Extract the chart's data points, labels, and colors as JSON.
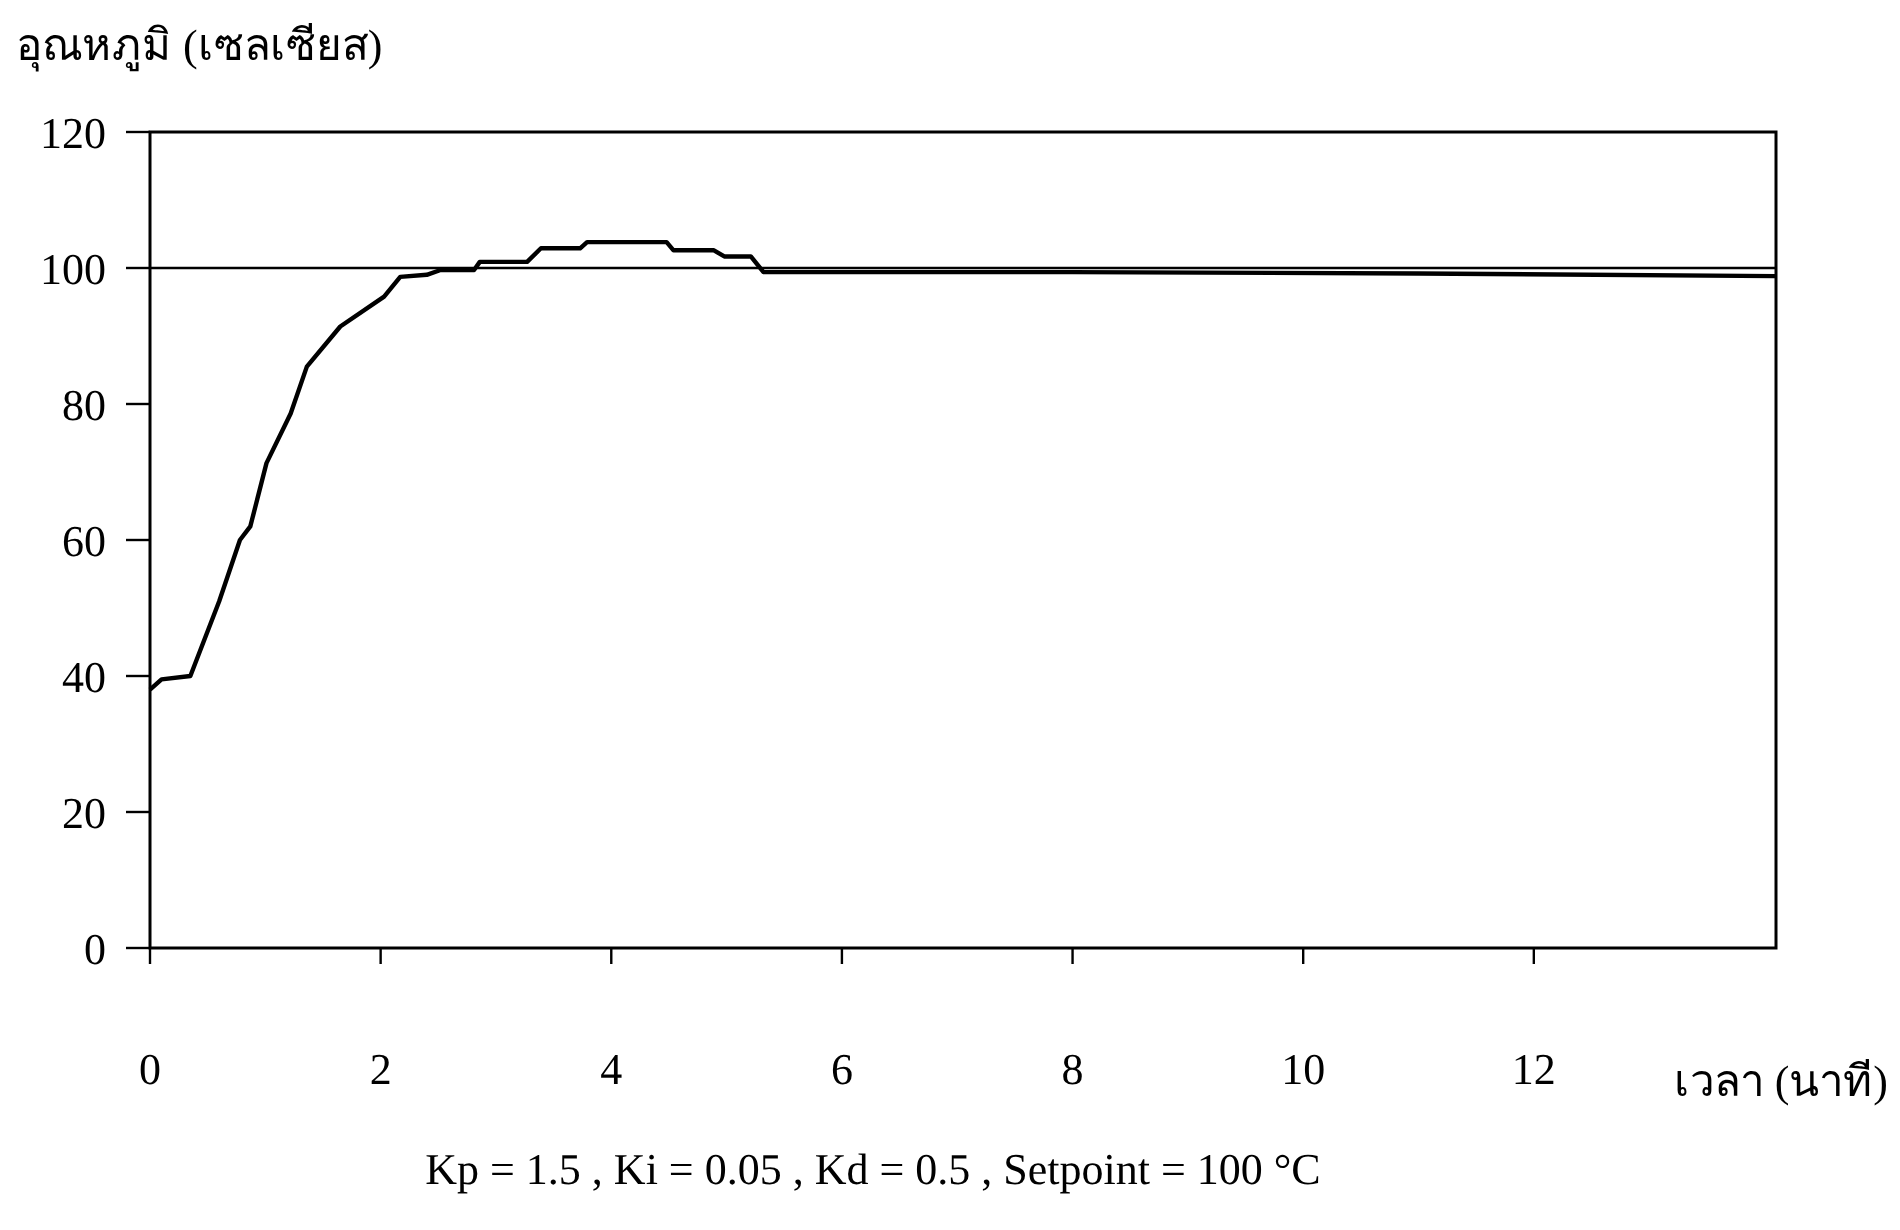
{
  "chart_data": {
    "type": "line",
    "ylabel": "อุณหภูมิ (เซลเซียส)",
    "xlabel": "เวลา (นาที)",
    "xlim": [
      0,
      14.1
    ],
    "xticks": [
      0,
      2,
      4,
      6,
      8,
      10,
      12
    ],
    "ylim": [
      0,
      120
    ],
    "yticks": [
      0,
      20,
      40,
      60,
      80,
      100,
      120
    ],
    "grid": false,
    "marker": "none",
    "line_style": "solid",
    "ref_lines": [
      {
        "axis": "y",
        "value": 100,
        "color": "#000000"
      }
    ],
    "annotations": [
      "Kp = 1.5 , Ki = 0.05 , Kd = 0.5 , Setpoint = 100 °C"
    ],
    "series": [
      {
        "color": "#000000",
        "x": [
          0,
          0.1,
          0.35,
          0.6,
          0.78,
          0.87,
          1.01,
          1.22,
          1.36,
          1.65,
          2.03,
          2.17,
          2.4,
          2.52,
          2.81,
          2.86,
          3.27,
          3.39,
          3.73,
          3.79,
          4.48,
          4.54,
          4.89,
          4.98,
          5.21,
          5.32,
          8,
          11,
          14.1
        ],
        "values": [
          38,
          39.5,
          40,
          51,
          60,
          62,
          71.3,
          78.6,
          85.5,
          91.4,
          95.8,
          98.7,
          99,
          99.7,
          99.7,
          100.9,
          100.9,
          102.9,
          102.9,
          103.8,
          103.8,
          102.6,
          102.6,
          101.7,
          101.7,
          99.4,
          99.4,
          99.2,
          98.8
        ]
      }
    ]
  }
}
